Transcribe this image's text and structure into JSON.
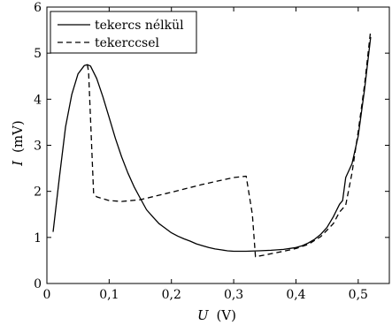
{
  "chart_data": {
    "type": "line",
    "xlabel_var": "U",
    "xlabel_unit": "(V)",
    "ylabel_var": "I",
    "ylabel_unit": "(mV)",
    "xlim": [
      0,
      0.55
    ],
    "ylim": [
      0,
      6
    ],
    "xticks": [
      0,
      0.1,
      0.2,
      0.3,
      0.4,
      0.5
    ],
    "xtick_labels": [
      "0",
      "0,1",
      "0,2",
      "0,3",
      "0,4",
      "0,5"
    ],
    "yticks": [
      0,
      1,
      2,
      3,
      4,
      5,
      6
    ],
    "ytick_labels": [
      "0",
      "1",
      "2",
      "3",
      "4",
      "5",
      "6"
    ],
    "grid": false,
    "legend_position": "top-left",
    "series": [
      {
        "name": "tekercs nélkül",
        "style": "solid",
        "color": "#000000",
        "x": [
          0.01,
          0.02,
          0.03,
          0.04,
          0.05,
          0.06,
          0.065,
          0.07,
          0.08,
          0.09,
          0.1,
          0.11,
          0.12,
          0.13,
          0.14,
          0.15,
          0.16,
          0.17,
          0.18,
          0.19,
          0.2,
          0.21,
          0.22,
          0.23,
          0.24,
          0.25,
          0.26,
          0.27,
          0.28,
          0.29,
          0.3,
          0.32,
          0.34,
          0.36,
          0.38,
          0.4,
          0.41,
          0.42,
          0.43,
          0.44,
          0.45,
          0.46,
          0.47,
          0.475,
          0.48,
          0.49,
          0.5,
          0.51,
          0.52
        ],
        "y": [
          1.12,
          2.3,
          3.4,
          4.1,
          4.55,
          4.73,
          4.75,
          4.72,
          4.45,
          4.05,
          3.6,
          3.15,
          2.75,
          2.4,
          2.1,
          1.85,
          1.6,
          1.45,
          1.3,
          1.2,
          1.1,
          1.03,
          0.97,
          0.92,
          0.86,
          0.82,
          0.78,
          0.75,
          0.73,
          0.71,
          0.7,
          0.7,
          0.71,
          0.72,
          0.74,
          0.78,
          0.82,
          0.88,
          0.96,
          1.07,
          1.22,
          1.45,
          1.72,
          1.8,
          2.3,
          2.6,
          3.2,
          4.2,
          5.35
        ]
      },
      {
        "name": "tekerccsel",
        "style": "dashed",
        "color": "#000000",
        "x": [
          0.065,
          0.067,
          0.075,
          0.08,
          0.1,
          0.12,
          0.15,
          0.2,
          0.25,
          0.3,
          0.32,
          0.33,
          0.335,
          0.35,
          0.38,
          0.4,
          0.42,
          0.44,
          0.46,
          0.47,
          0.48,
          0.49,
          0.5,
          0.51,
          0.52
        ],
        "y": [
          4.75,
          4.6,
          1.95,
          1.88,
          1.8,
          1.78,
          1.82,
          1.98,
          2.15,
          2.3,
          2.33,
          1.5,
          0.58,
          0.62,
          0.7,
          0.76,
          0.85,
          1.02,
          1.3,
          1.55,
          1.7,
          2.4,
          3.3,
          4.3,
          5.5
        ]
      }
    ]
  }
}
